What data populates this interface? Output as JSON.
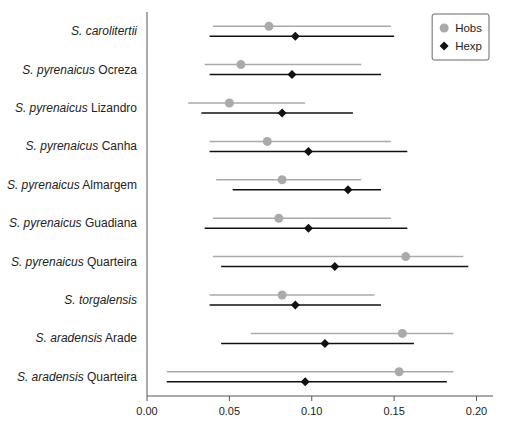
{
  "chart_data": {
    "type": "dot",
    "orientation": "horizontal",
    "categories": [
      "S. carolitertii",
      "S. pyrenaicus Ocreza",
      "S. pyrenaicus Lizandro",
      "S. pyrenaicus Canha",
      "S. pyrenaicus Almargem",
      "S. pyrenaicus Guadiana",
      "S. pyrenaicus Quarteira",
      "S. torgalensis",
      "S. aradensis Arade",
      "S. aradensis Quarteira"
    ],
    "series": [
      {
        "name": "Hobs",
        "color": "#aaaaaa",
        "marker": "circle",
        "values": [
          0.074,
          0.057,
          0.05,
          0.073,
          0.082,
          0.08,
          0.157,
          0.082,
          0.155,
          0.153
        ],
        "low": [
          0.04,
          0.035,
          0.025,
          0.038,
          0.042,
          0.04,
          0.04,
          0.038,
          0.063,
          0.012
        ],
        "high": [
          0.148,
          0.13,
          0.096,
          0.148,
          0.13,
          0.148,
          0.192,
          0.138,
          0.186,
          0.186
        ]
      },
      {
        "name": "Hexp",
        "color": "#111111",
        "marker": "diamond",
        "values": [
          0.09,
          0.088,
          0.082,
          0.098,
          0.122,
          0.098,
          0.114,
          0.09,
          0.108,
          0.096
        ],
        "low": [
          0.038,
          0.038,
          0.033,
          0.038,
          0.052,
          0.035,
          0.045,
          0.038,
          0.045,
          0.012
        ],
        "high": [
          0.15,
          0.142,
          0.125,
          0.158,
          0.142,
          0.158,
          0.195,
          0.142,
          0.162,
          0.182
        ]
      }
    ],
    "xlim": [
      0.0,
      0.21
    ],
    "xticks": [
      {
        "value": 0.0,
        "label": "0.00"
      },
      {
        "value": 0.05,
        "label": "0.05"
      },
      {
        "value": 0.1,
        "label": "0.10"
      },
      {
        "value": 0.15,
        "label": "0.15"
      },
      {
        "value": 0.2,
        "label": "0.20"
      }
    ],
    "legend": "upper right"
  }
}
